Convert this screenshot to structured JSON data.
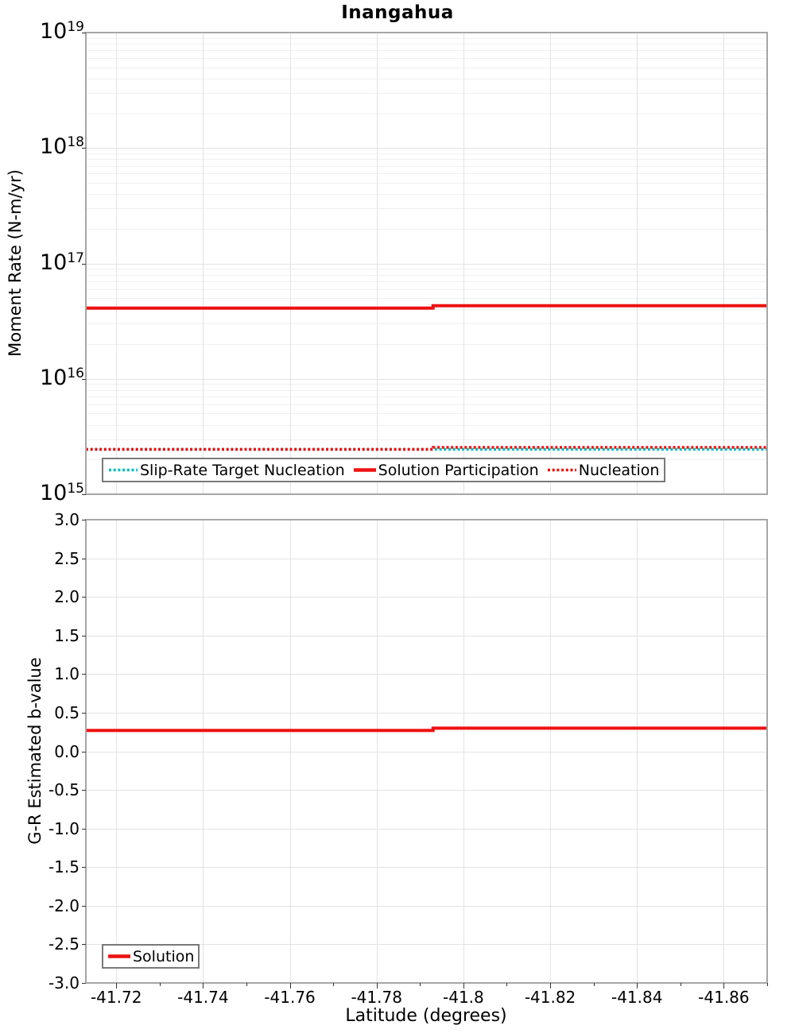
{
  "title": "Inangahua",
  "palette": {
    "red": "#ee1111",
    "cyan": "#00bfbf",
    "grid_minor": "#f0f0f0",
    "grid_major": "#e3e3e3",
    "plot_border": "#a6a6a6",
    "tick_mark": "#333333",
    "legend_border": "#7a7a7a",
    "text": "#000000",
    "background": "#ffffff"
  },
  "chart_data": [
    {
      "type": "line",
      "title": "Inangahua",
      "ylabel": "Moment Rate (N-m/yr)",
      "yscale": "log",
      "ylim": [
        1000000000000000.0,
        1e+19
      ],
      "xlim": [
        -41.713,
        -41.87
      ],
      "grid": true,
      "legend_position": "bottom-left-inside",
      "y_ticks": [
        {
          "exp": 19,
          "label": "10^19"
        },
        {
          "exp": 18,
          "label": "10^18"
        },
        {
          "exp": 17,
          "label": "10^17"
        },
        {
          "exp": 16,
          "label": "10^16"
        },
        {
          "exp": 15,
          "label": "10^15"
        }
      ],
      "series": [
        {
          "name": "Slip-Rate Target Nucleation",
          "color": "#00bfbf",
          "style": "dotted",
          "x": [
            -41.713,
            -41.793,
            -41.793,
            -41.87
          ],
          "y": [
            2450000000000000.0,
            2450000000000000.0,
            2450000000000000.0,
            2450000000000000.0
          ]
        },
        {
          "name": "Solution Participation",
          "color": "#ee1111",
          "style": "solid",
          "x": [
            -41.713,
            -41.793,
            -41.793,
            -41.87
          ],
          "y": [
            4.1e+16,
            4.1e+16,
            4.3e+16,
            4.3e+16
          ]
        },
        {
          "name": "Nucleation",
          "color": "#ee1111",
          "style": "dotted",
          "x": [
            -41.713,
            -41.793,
            -41.793,
            -41.87
          ],
          "y": [
            2450000000000000.0,
            2450000000000000.0,
            2550000000000000.0,
            2550000000000000.0
          ]
        }
      ]
    },
    {
      "type": "line",
      "ylabel": "G-R Estimated b-value",
      "xlabel": "Latitude (degrees)",
      "yscale": "linear",
      "ylim": [
        -3.0,
        3.0
      ],
      "xlim": [
        -41.713,
        -41.87
      ],
      "grid": true,
      "legend_position": "bottom-left-inside",
      "y_ticks": [
        {
          "value": 3.0,
          "label": "3.0"
        },
        {
          "value": 2.5,
          "label": "2.5"
        },
        {
          "value": 2.0,
          "label": "2.0"
        },
        {
          "value": 1.5,
          "label": "1.5"
        },
        {
          "value": 1.0,
          "label": "1.0"
        },
        {
          "value": 0.5,
          "label": "0.5"
        },
        {
          "value": 0.0,
          "label": "0.0"
        },
        {
          "value": -0.5,
          "label": "-0.5"
        },
        {
          "value": -1.0,
          "label": "-1.0"
        },
        {
          "value": -1.5,
          "label": "-1.5"
        },
        {
          "value": -2.0,
          "label": "-2.0"
        },
        {
          "value": -2.5,
          "label": "-2.5"
        },
        {
          "value": -3.0,
          "label": "-3.0"
        }
      ],
      "x_ticks": [
        {
          "value": -41.72,
          "label": "-41.72"
        },
        {
          "value": -41.74,
          "label": "-41.74"
        },
        {
          "value": -41.76,
          "label": "-41.76"
        },
        {
          "value": -41.78,
          "label": "-41.78"
        },
        {
          "value": -41.8,
          "label": "-41.8"
        },
        {
          "value": -41.82,
          "label": "-41.82"
        },
        {
          "value": -41.84,
          "label": "-41.84"
        },
        {
          "value": -41.86,
          "label": "-41.86"
        }
      ],
      "series": [
        {
          "name": "Solution",
          "color": "#ee1111",
          "style": "solid",
          "x": [
            -41.713,
            -41.793,
            -41.793,
            -41.87
          ],
          "y": [
            0.27,
            0.27,
            0.3,
            0.3
          ]
        }
      ]
    }
  ]
}
